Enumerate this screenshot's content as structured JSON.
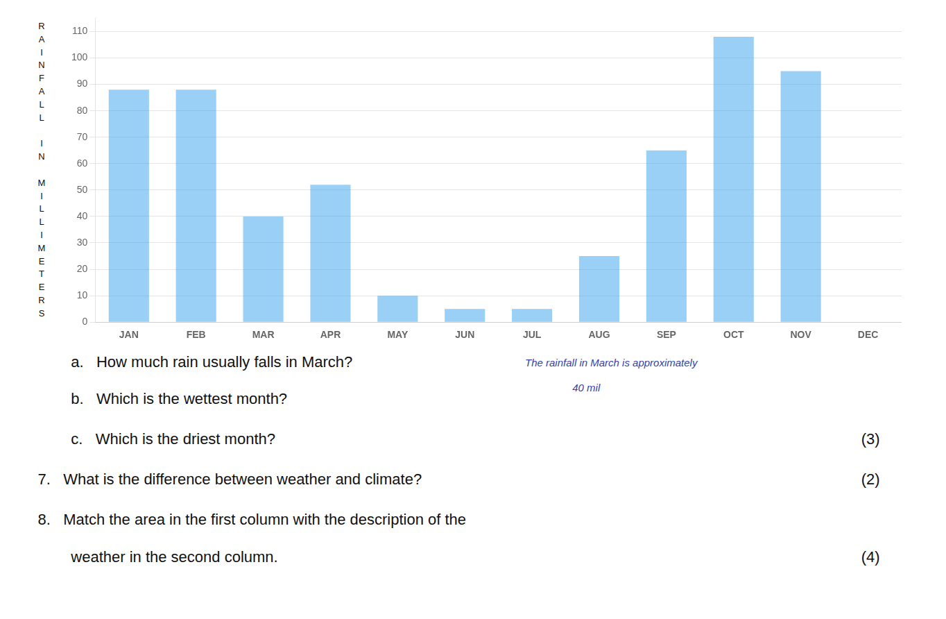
{
  "chart_data": {
    "type": "bar",
    "categories": [
      "JAN",
      "FEB",
      "MAR",
      "APR",
      "MAY",
      "JUN",
      "JUL",
      "AUG",
      "SEP",
      "OCT",
      "NOV",
      "DEC"
    ],
    "values": [
      88,
      88,
      40,
      52,
      10,
      5,
      5,
      25,
      65,
      108,
      95,
      0
    ],
    "ylabel": "RAINFALL IN MILLIMETERS",
    "ylim": [
      0,
      115
    ],
    "yticks": [
      0,
      10,
      20,
      30,
      40,
      50,
      60,
      70,
      80,
      90,
      100,
      110
    ],
    "grid": true,
    "annotations": [
      "a.   How much rain usually falls in March?",
      "b.   Which is the wettest month?",
      "c.   Which is the driest month?",
      "7.   What is the difference between weather and climate?",
      "8.   Match the area in the first column with the description of the",
      "weather in the second column.",
      "(3)",
      "(2)",
      "(4)",
      "The rainfall in March is approximately",
      "40 mil"
    ]
  }
}
